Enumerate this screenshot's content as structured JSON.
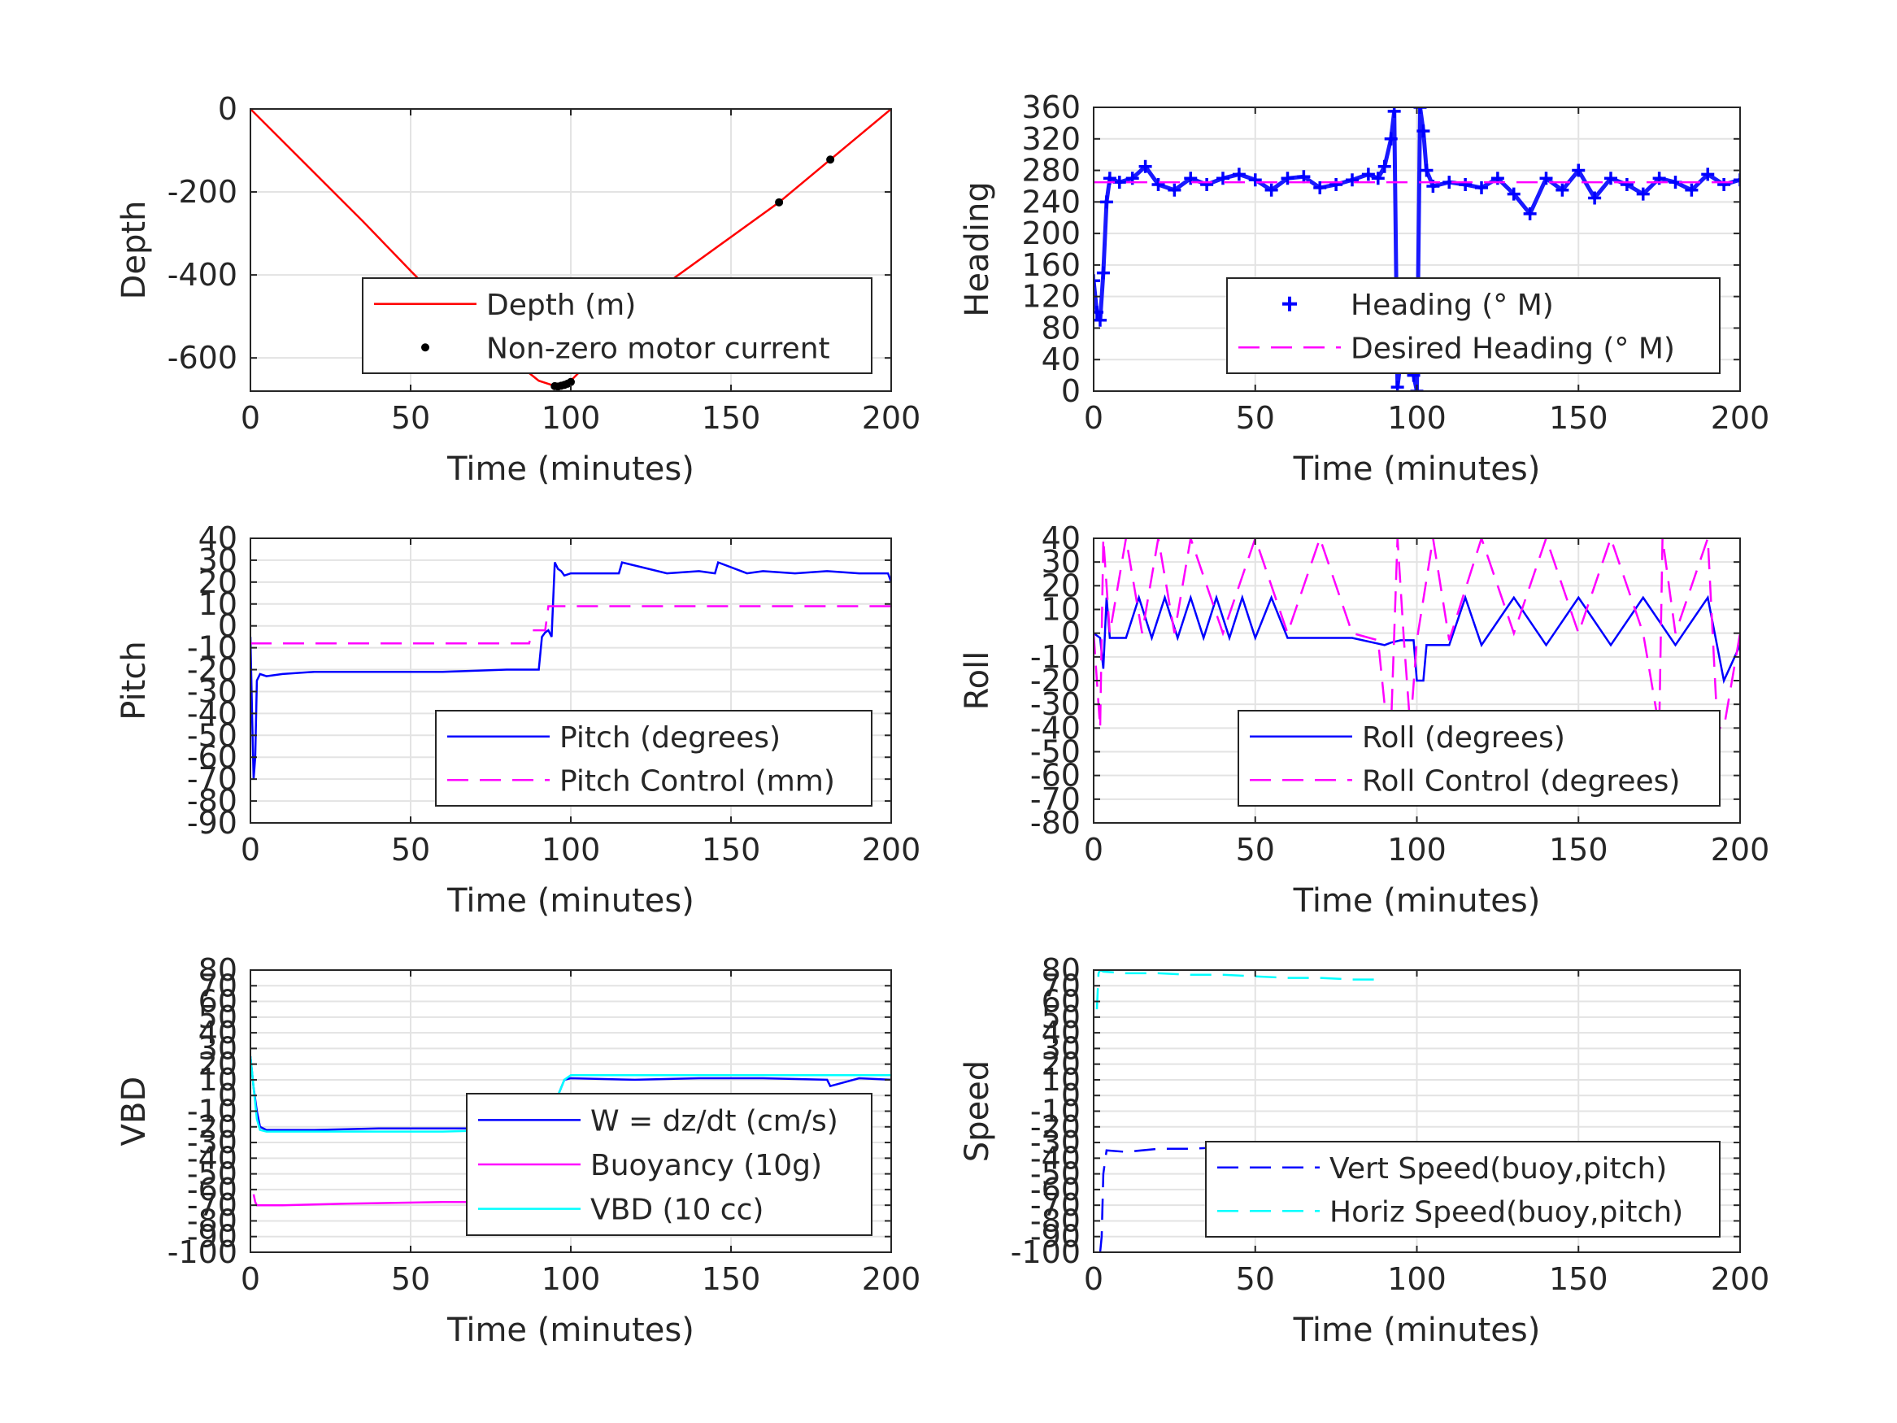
{
  "chart_data": [
    {
      "type": "line",
      "xlabel": "Time (minutes)",
      "ylabel": "Depth",
      "xlim": [
        0,
        200
      ],
      "ylim": [
        -680,
        0
      ],
      "xticks": [
        0,
        50,
        100,
        150,
        200
      ],
      "yticks": [
        0,
        -200,
        -400,
        -600
      ],
      "xtick_labels": [
        "0",
        "50",
        "100",
        "150",
        "200"
      ],
      "ytick_labels": [
        "0",
        "-200",
        "-400",
        "-600"
      ],
      "grid": true,
      "legend_position": "bottom-right",
      "series": [
        {
          "name": "Depth (m)",
          "style": "solid",
          "marker": "none",
          "color": "#ff0000",
          "x": [
            0,
            35,
            60,
            90,
            96,
            100,
            130,
            165,
            181,
            200
          ],
          "y": [
            0,
            -270,
            -470,
            -655,
            -670,
            -655,
            -420,
            -225,
            -122,
            0
          ]
        },
        {
          "name": "Non-zero motor current",
          "style": "none",
          "marker": "dot",
          "color": "#000000",
          "x": [
            95,
            96,
            97,
            98,
            99,
            100,
            165,
            181
          ],
          "y": [
            -668,
            -669,
            -667,
            -665,
            -662,
            -658,
            -225,
            -122
          ]
        }
      ]
    },
    {
      "type": "line",
      "xlabel": "Time (minutes)",
      "ylabel": "Heading",
      "xlim": [
        0,
        200
      ],
      "ylim": [
        0,
        360
      ],
      "xticks": [
        0,
        50,
        100,
        150,
        200
      ],
      "yticks": [
        0,
        40,
        80,
        120,
        160,
        200,
        240,
        280,
        320,
        360
      ],
      "xtick_labels": [
        "0",
        "50",
        "100",
        "150",
        "200"
      ],
      "ytick_labels": [
        "0",
        "40",
        "80",
        "120",
        "160",
        "200",
        "240",
        "280",
        "320",
        "360"
      ],
      "grid": true,
      "legend_position": "bottom-right",
      "series": [
        {
          "name": "Heading (° M)",
          "style": "none",
          "marker": "plus",
          "color": "#0000ff",
          "x": [
            0,
            1,
            2,
            3,
            4,
            5,
            8,
            12,
            16,
            20,
            25,
            30,
            35,
            40,
            45,
            50,
            55,
            60,
            65,
            70,
            75,
            80,
            85,
            88,
            90,
            92,
            93,
            94,
            95,
            96,
            97,
            98,
            99,
            100,
            101,
            102,
            103,
            105,
            110,
            115,
            120,
            125,
            130,
            135,
            140,
            145,
            150,
            155,
            160,
            165,
            170,
            175,
            180,
            185,
            190,
            195,
            200
          ],
          "y": [
            140,
            100,
            90,
            150,
            240,
            270,
            265,
            270,
            285,
            262,
            255,
            270,
            262,
            270,
            275,
            268,
            255,
            270,
            272,
            258,
            262,
            268,
            275,
            270,
            285,
            320,
            355,
            5,
            40,
            100,
            90,
            60,
            20,
            0,
            360,
            330,
            280,
            260,
            265,
            262,
            258,
            270,
            250,
            225,
            270,
            255,
            280,
            245,
            270,
            262,
            250,
            270,
            265,
            255,
            275,
            262,
            268
          ]
        },
        {
          "name": "Desired Heading (° M)",
          "style": "dashed",
          "marker": "none",
          "color": "#ff00ff",
          "x": [
            0,
            200
          ],
          "y": [
            265,
            265
          ]
        }
      ]
    },
    {
      "type": "line",
      "xlabel": "Time (minutes)",
      "ylabel": "Pitch",
      "xlim": [
        0,
        200
      ],
      "ylim": [
        -90,
        40
      ],
      "xticks": [
        0,
        50,
        100,
        150,
        200
      ],
      "yticks": [
        40,
        30,
        20,
        10,
        0,
        -10,
        -20,
        -30,
        -40,
        -50,
        -60,
        -70,
        -80,
        -90
      ],
      "xtick_labels": [
        "0",
        "50",
        "100",
        "150",
        "200"
      ],
      "ytick_labels": [
        "40",
        "30",
        "20",
        "10",
        "0",
        "-10",
        "-20",
        "-30",
        "-40",
        "-50",
        "-60",
        "-70",
        "-80",
        "-90"
      ],
      "grid": true,
      "legend_position": "bottom-right",
      "series": [
        {
          "name": "Pitch (degrees)",
          "style": "solid",
          "marker": "none",
          "color": "#0000ff",
          "x": [
            0,
            0.5,
            1,
            1.5,
            2,
            3,
            5,
            10,
            20,
            40,
            60,
            80,
            90,
            91,
            92,
            93,
            94,
            95,
            96,
            97,
            98,
            100,
            110,
            115,
            116,
            130,
            140,
            145,
            146,
            155,
            160,
            170,
            180,
            190,
            199,
            200
          ],
          "y": [
            -5,
            -40,
            -70,
            -60,
            -25,
            -22,
            -23,
            -22,
            -21,
            -21,
            -21,
            -20,
            -20,
            -5,
            -3,
            -2,
            -5,
            29,
            26,
            25,
            23,
            24,
            24,
            24,
            29,
            24,
            25,
            24,
            29,
            24,
            25,
            24,
            25,
            24,
            24,
            20
          ]
        },
        {
          "name": "Pitch Control (mm)",
          "style": "dashed",
          "marker": "none",
          "color": "#ff00ff",
          "x": [
            0,
            87,
            88,
            92,
            93,
            94,
            95,
            96,
            200
          ],
          "y": [
            -8,
            -8,
            -2,
            -2,
            9,
            9,
            9,
            9,
            9
          ]
        }
      ]
    },
    {
      "type": "line",
      "xlabel": "Time (minutes)",
      "ylabel": "Roll",
      "xlim": [
        0,
        200
      ],
      "ylim": [
        -80,
        40
      ],
      "xticks": [
        0,
        50,
        100,
        150,
        200
      ],
      "yticks": [
        40,
        30,
        20,
        10,
        0,
        -10,
        -20,
        -30,
        -40,
        -50,
        -60,
        -70,
        -80
      ],
      "xtick_labels": [
        "0",
        "50",
        "100",
        "150",
        "200"
      ],
      "ytick_labels": [
        "40",
        "30",
        "20",
        "10",
        "0",
        "-10",
        "-20",
        "-30",
        "-40",
        "-50",
        "-60",
        "-70",
        "-80"
      ],
      "grid": true,
      "legend_position": "bottom-right",
      "series": [
        {
          "name": "Roll (degrees)",
          "style": "solid",
          "marker": "none",
          "color": "#0000ff",
          "x": [
            0,
            2,
            3,
            4,
            5,
            10,
            14,
            18,
            22,
            26,
            30,
            34,
            38,
            42,
            46,
            50,
            55,
            60,
            65,
            70,
            80,
            90,
            92,
            95,
            99,
            100,
            102,
            103,
            105,
            110,
            115,
            120,
            130,
            140,
            150,
            160,
            170,
            180,
            190,
            195,
            200
          ],
          "y": [
            0,
            -2,
            -15,
            15,
            -2,
            -2,
            15,
            -2,
            15,
            -2,
            15,
            -2,
            15,
            -2,
            15,
            -2,
            15,
            -2,
            -2,
            -2,
            -2,
            -5,
            -4,
            -3,
            -3,
            -20,
            -20,
            -5,
            -5,
            -5,
            15,
            -5,
            15,
            -5,
            15,
            -5,
            15,
            -5,
            15,
            -20,
            -5
          ]
        },
        {
          "name": "Roll Control (degrees)",
          "style": "dashed",
          "marker": "none",
          "color": "#ff00ff",
          "x": [
            0,
            2,
            3,
            5,
            10,
            15,
            20,
            25,
            30,
            40,
            50,
            60,
            70,
            80,
            88,
            90,
            92,
            94,
            96,
            98,
            100,
            105,
            110,
            120,
            130,
            140,
            150,
            160,
            170,
            175,
            176,
            180,
            190,
            193,
            195,
            200
          ],
          "y": [
            0,
            -40,
            40,
            0,
            40,
            0,
            40,
            0,
            40,
            0,
            40,
            0,
            40,
            0,
            -3,
            -30,
            -40,
            40,
            -3,
            -40,
            -3,
            40,
            -3,
            40,
            0,
            40,
            0,
            40,
            0,
            -40,
            40,
            0,
            40,
            -40,
            -40,
            0
          ]
        }
      ]
    },
    {
      "type": "line",
      "xlabel": "Time (minutes)",
      "ylabel": "VBD",
      "xlim": [
        0,
        200
      ],
      "ylim": [
        -100,
        80
      ],
      "xticks": [
        0,
        50,
        100,
        150,
        200
      ],
      "yticks": [
        80,
        70,
        60,
        50,
        40,
        30,
        20,
        10,
        0,
        -10,
        -20,
        -30,
        -40,
        -50,
        -60,
        -70,
        -80,
        -90,
        -100
      ],
      "xtick_labels": [
        "0",
        "50",
        "100",
        "150",
        "200"
      ],
      "ytick_labels": [
        "80",
        "70",
        "60",
        "50",
        "40",
        "30",
        "20",
        "10",
        "0",
        "-10",
        "-20",
        "-30",
        "-40",
        "-50",
        "-60",
        "-70",
        "-80",
        "-90",
        "-100"
      ],
      "grid": true,
      "legend_position": "bottom-right",
      "series": [
        {
          "name": "W = dz/dt (cm/s)",
          "style": "solid",
          "marker": "none",
          "color": "#0000ff",
          "x": [
            0,
            1,
            2,
            3,
            5,
            20,
            40,
            60,
            80,
            90,
            92,
            95,
            98,
            100,
            120,
            140,
            160,
            180,
            181,
            190,
            200
          ],
          "y": [
            25,
            5,
            -10,
            -20,
            -22,
            -22,
            -21,
            -21,
            -21,
            -20,
            -18,
            -5,
            10,
            11,
            10,
            11,
            11,
            10,
            6,
            11,
            10
          ]
        },
        {
          "name": "Buoyancy (10g)",
          "style": "solid",
          "marker": "none",
          "color": "#ff00ff",
          "x": [
            1,
            1.5,
            2,
            10,
            30,
            60,
            90
          ],
          "y": [
            -63,
            -68,
            -70,
            -70,
            -69,
            -68,
            -68
          ]
        },
        {
          "name": "VBD (10 cc)",
          "style": "solid",
          "marker": "none",
          "color": "#00ffff",
          "x": [
            0,
            1,
            2,
            3,
            5,
            20,
            40,
            60,
            80,
            90,
            92,
            95,
            98,
            100,
            120,
            140,
            160,
            180,
            200
          ],
          "y": [
            25,
            5,
            -15,
            -22,
            -23,
            -23,
            -23,
            -23,
            -22,
            -22,
            -18,
            -5,
            10,
            13,
            13,
            13,
            13,
            13,
            13
          ]
        }
      ]
    },
    {
      "type": "line",
      "xlabel": "Time (minutes)",
      "ylabel": "Speed",
      "xlim": [
        0,
        200
      ],
      "ylim": [
        -100,
        80
      ],
      "xticks": [
        0,
        50,
        100,
        150,
        200
      ],
      "yticks": [
        80,
        70,
        60,
        50,
        40,
        30,
        20,
        10,
        0,
        -10,
        -20,
        -30,
        -40,
        -50,
        -60,
        -70,
        -80,
        -90,
        -100
      ],
      "xtick_labels": [
        "0",
        "50",
        "100",
        "150",
        "200"
      ],
      "ytick_labels": [
        "80",
        "70",
        "60",
        "50",
        "40",
        "30",
        "20",
        "10",
        "0",
        "-10",
        "-20",
        "-30",
        "-40",
        "-50",
        "-60",
        "-70",
        "-80",
        "-90",
        "-100"
      ],
      "grid": true,
      "legend_position": "bottom-right",
      "series": [
        {
          "name": "Vert Speed(buoy,pitch)",
          "style": "dashed",
          "marker": "none",
          "color": "#0000ff",
          "x": [
            2,
            2.5,
            3,
            4,
            10,
            20,
            30,
            40,
            50,
            60,
            70,
            80,
            90
          ],
          "y": [
            -100,
            -90,
            -50,
            -35,
            -36,
            -34,
            -34,
            -33,
            -33,
            -32,
            -32,
            -31,
            -31
          ]
        },
        {
          "name": "Horiz Speed(buoy,pitch)",
          "style": "dashed",
          "marker": "none",
          "color": "#00ffff",
          "x": [
            1,
            1.5,
            2,
            3,
            10,
            20,
            30,
            40,
            50,
            60,
            70,
            80,
            90
          ],
          "y": [
            55,
            78,
            80,
            79,
            78,
            78,
            77,
            77,
            76,
            75,
            75,
            74,
            74
          ]
        }
      ]
    }
  ]
}
